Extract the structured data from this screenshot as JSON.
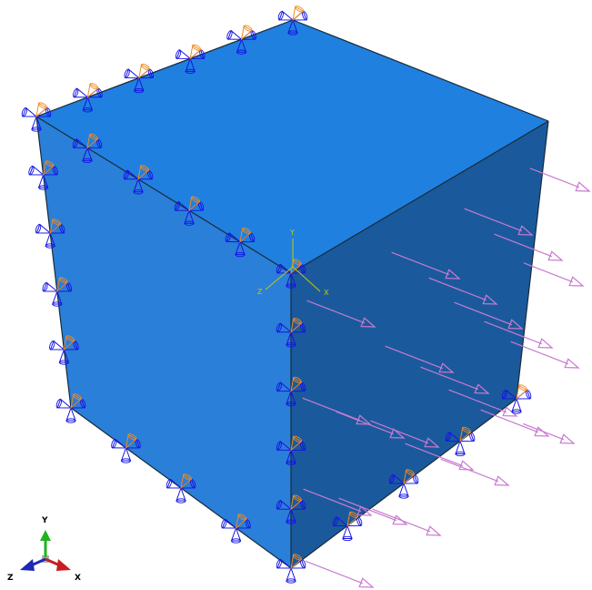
{
  "model": {
    "shape": "cube",
    "colors": {
      "face_top": "#1f80e0",
      "face_front": "#2a7fd8",
      "face_right": "#1a5a9c",
      "edge": "#1a2a3a",
      "boundary_cone_blue": "#1414e6",
      "boundary_cone_orange": "#f08a20",
      "load_arrow": "#c87ad0",
      "csys": "#c8c800"
    }
  },
  "csys": {
    "icon": "datum-csys-icon",
    "labels": {
      "x": "X",
      "y": "Y",
      "z": "Z"
    }
  },
  "triad": {
    "icon": "view-triad-icon",
    "labels": {
      "x": "X",
      "y": "Y",
      "z": "Z"
    },
    "colors": {
      "x": "#c81e1e",
      "y": "#1eb41e",
      "z": "#1e28b4"
    }
  }
}
